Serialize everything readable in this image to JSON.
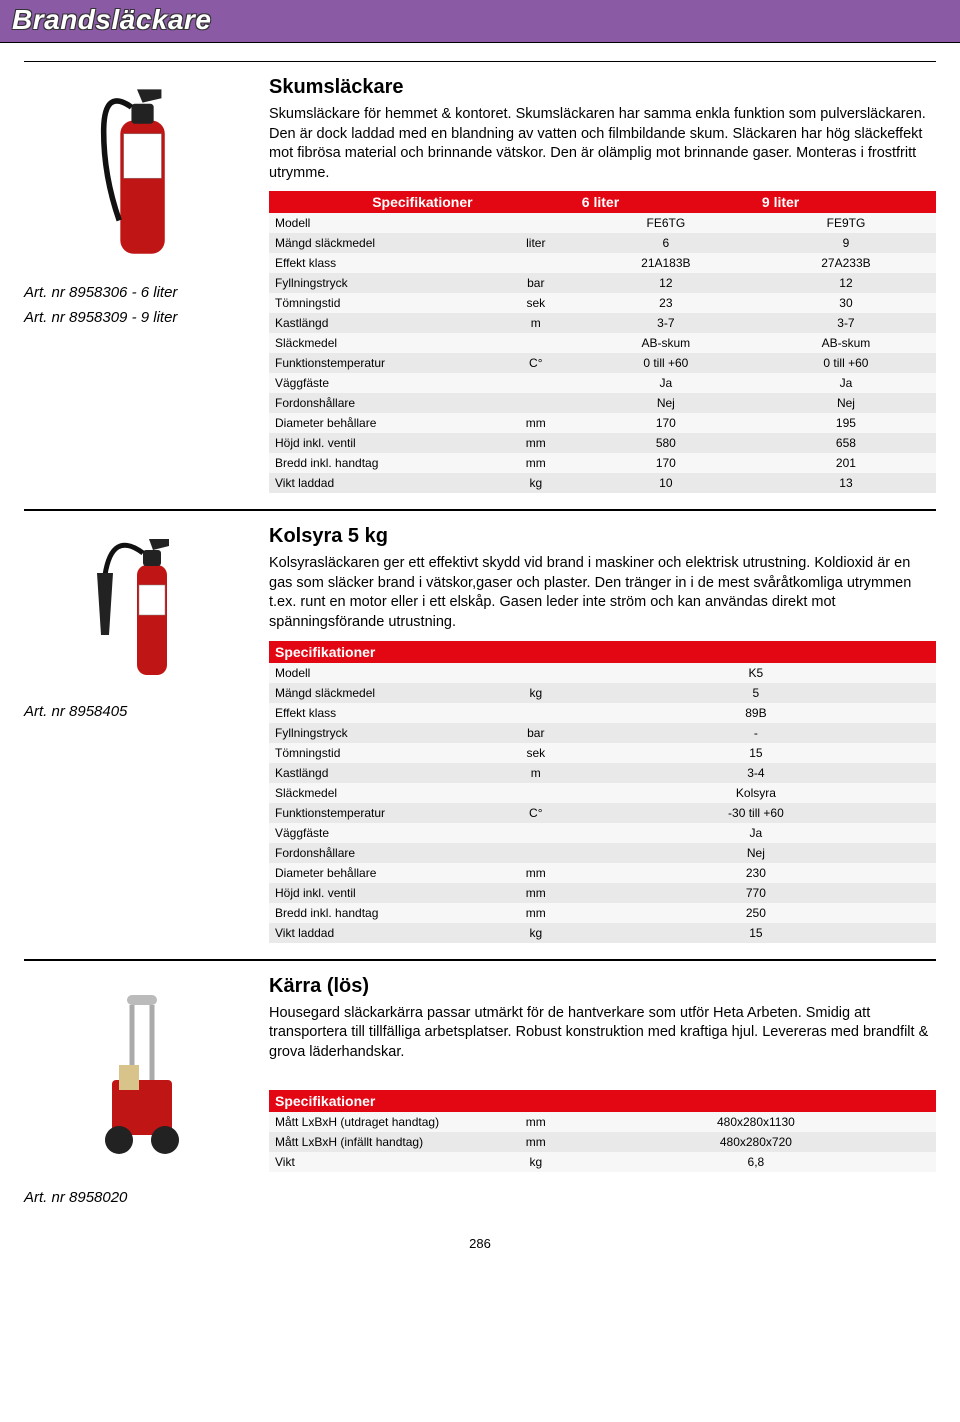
{
  "page": {
    "banner_title": "Brandsläckare",
    "page_number": "286"
  },
  "skum": {
    "title": "Skumsläckare",
    "description": "Skumsläckare för hemmet & kontoret. Skumsläckaren har samma enkla funktion som pulversläckaren. Den är dock laddad med en blandning av vatten och filmbildande skum. Släckaren har hög släckeffekt mot fibrösa material och brinnande vätskor. Den är olämplig mot brinnande gaser. Monteras i frostfritt utrymme.",
    "art1": "Art. nr 8958306 - 6 liter",
    "art2": "Art. nr 8958309 - 9 liter",
    "spec_header_label": "Specifikationer",
    "col_a": "6 liter",
    "col_b": "9 liter",
    "rows": [
      {
        "label": "Modell",
        "unit": "",
        "a": "FE6TG",
        "b": "FE9TG"
      },
      {
        "label": "Mängd släckmedel",
        "unit": "liter",
        "a": "6",
        "b": "9"
      },
      {
        "label": "Effekt klass",
        "unit": "",
        "a": "21A183B",
        "b": "27A233B"
      },
      {
        "label": "Fyllningstryck",
        "unit": "bar",
        "a": "12",
        "b": "12"
      },
      {
        "label": "Tömningstid",
        "unit": "sek",
        "a": "23",
        "b": "30"
      },
      {
        "label": "Kastlängd",
        "unit": "m",
        "a": "3-7",
        "b": "3-7"
      },
      {
        "label": "Släckmedel",
        "unit": "",
        "a": "AB-skum",
        "b": "AB-skum"
      },
      {
        "label": "Funktionstemperatur",
        "unit": "C°",
        "a": "0 till +60",
        "b": "0 till +60"
      },
      {
        "label": "Väggfäste",
        "unit": "",
        "a": "Ja",
        "b": "Ja"
      },
      {
        "label": "Fordonshållare",
        "unit": "",
        "a": "Nej",
        "b": "Nej"
      },
      {
        "label": "Diameter behållare",
        "unit": "mm",
        "a": "170",
        "b": "195"
      },
      {
        "label": "Höjd inkl. ventil",
        "unit": "mm",
        "a": "580",
        "b": "658"
      },
      {
        "label": "Bredd inkl. handtag",
        "unit": "mm",
        "a": "170",
        "b": "201"
      },
      {
        "label": "Vikt laddad",
        "unit": "kg",
        "a": "10",
        "b": "13"
      }
    ]
  },
  "kolsyra": {
    "title": "Kolsyra 5 kg",
    "description": "Kolsyrasläckaren ger ett effektivt skydd vid brand i maskiner och elektrisk utrustning. Koldioxid är en gas som släcker brand i vätskor,gaser och plaster. Den tränger in i de mest svåråtkomliga utrymmen t.ex. runt en motor eller i ett elskåp. Gasen leder inte ström och kan användas direkt mot spänningsförande utrustning.",
    "art": "Art. nr 8958405",
    "spec_header_label": "Specifikationer",
    "rows": [
      {
        "label": "Modell",
        "unit": "",
        "a": "K5"
      },
      {
        "label": "Mängd släckmedel",
        "unit": "kg",
        "a": "5"
      },
      {
        "label": "Effekt klass",
        "unit": "",
        "a": "89B"
      },
      {
        "label": "Fyllningstryck",
        "unit": "bar",
        "a": "-"
      },
      {
        "label": "Tömningstid",
        "unit": "sek",
        "a": "15"
      },
      {
        "label": "Kastlängd",
        "unit": "m",
        "a": "3-4"
      },
      {
        "label": "Släckmedel",
        "unit": "",
        "a": "Kolsyra"
      },
      {
        "label": "Funktionstemperatur",
        "unit": "C°",
        "a": "-30 till +60"
      },
      {
        "label": "Väggfäste",
        "unit": "",
        "a": "Ja"
      },
      {
        "label": "Fordonshållare",
        "unit": "",
        "a": "Nej"
      },
      {
        "label": "Diameter behållare",
        "unit": "mm",
        "a": "230"
      },
      {
        "label": "Höjd inkl. ventil",
        "unit": "mm",
        "a": "770"
      },
      {
        "label": "Bredd inkl. handtag",
        "unit": "mm",
        "a": "250"
      },
      {
        "label": "Vikt laddad",
        "unit": "kg",
        "a": "15"
      }
    ]
  },
  "karra": {
    "title": "Kärra (lös)",
    "description": "Housegard släckarkärra passar utmärkt för de hantverkare som utför Heta Arbeten. Smidig att transportera till tillfälliga arbetsplatser. Robust konstruktion med kraftiga hjul. Levereras med brandfilt & grova läderhandskar.",
    "art": "Art. nr 8958020",
    "spec_header_label": "Specifikationer",
    "rows": [
      {
        "label": "Mått LxBxH (utdraget handtag)",
        "unit": "mm",
        "a": "480x280x1130"
      },
      {
        "label": "Mått LxBxH (infällt handtag)",
        "unit": "mm",
        "a": "480x280x720"
      },
      {
        "label": "Vikt",
        "unit": "kg",
        "a": "6,8"
      }
    ]
  },
  "style": {
    "banner_bg": "#8a5aa5",
    "spec_header_bg": "#e30613",
    "row_even_bg": "#e9e9e9",
    "row_odd_bg": "#f7f7f7"
  }
}
